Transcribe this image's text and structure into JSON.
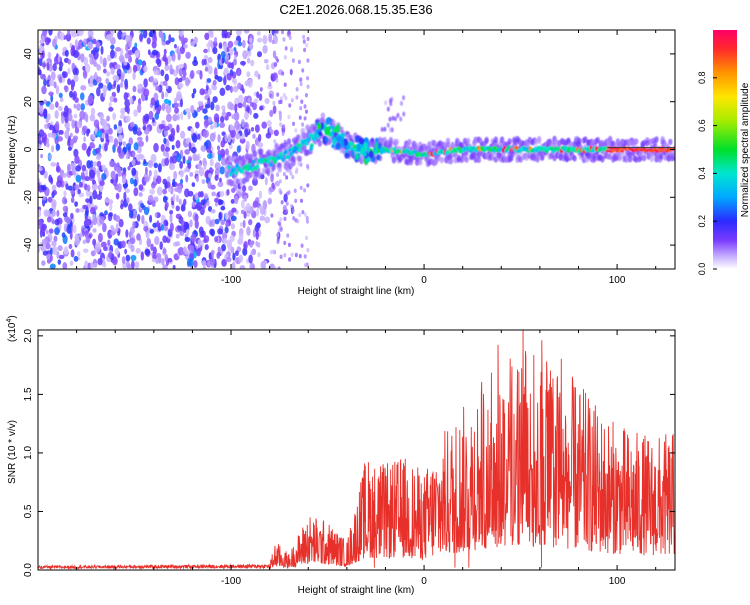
{
  "title": "C2E1.2026.068.15.35.E36",
  "chart_data": [
    {
      "type": "heatmap",
      "name": "spectrogram",
      "xlabel": "Height of straight line (km)",
      "ylabel": "Frequency (Hz)",
      "xlim": [
        -200,
        130
      ],
      "ylim": [
        -50,
        50
      ],
      "xticks": [
        -100,
        0,
        100
      ],
      "xtick_labels": [
        "-100",
        "0",
        "100"
      ],
      "yticks": [
        -40,
        -20,
        0,
        20,
        40
      ],
      "ytick_labels": [
        "-40",
        "-20",
        "0",
        "20",
        "40"
      ],
      "colorbar": {
        "label": "Normalized spectral amplitude",
        "range": [
          0,
          1
        ],
        "ticks": [
          0.0,
          0.2,
          0.4,
          0.6,
          0.8
        ],
        "tick_labels": [
          "0.0",
          "0.2",
          "0.4",
          "0.6",
          "0.8"
        ]
      },
      "noise_region_x": [
        -200,
        -75
      ],
      "signal_center_hz": [
        [
          -100,
          -9
        ],
        [
          -90,
          -7
        ],
        [
          -80,
          -5
        ],
        [
          -70,
          -2
        ],
        [
          -60,
          4
        ],
        [
          -52,
          9
        ],
        [
          -45,
          5
        ],
        [
          -40,
          2
        ],
        [
          -30,
          -1
        ],
        [
          -20,
          0
        ],
        [
          0,
          -2
        ],
        [
          20,
          0
        ],
        [
          50,
          0
        ],
        [
          100,
          0
        ],
        [
          130,
          0
        ]
      ]
    },
    {
      "type": "line",
      "name": "snr",
      "xlabel": "Height of straight line (km)",
      "ylabel": "SNR (10 * v/v)",
      "multiplier_label": "(x10",
      "multiplier_exp": "4",
      "xlim": [
        -200,
        130
      ],
      "ylim": [
        0,
        2.05
      ],
      "xticks": [
        -100,
        0,
        100
      ],
      "xtick_labels": [
        "-100",
        "0",
        "100"
      ],
      "yticks": [
        0.0,
        0.5,
        1.0,
        1.5,
        2.0
      ],
      "ytick_labels": [
        "0.0",
        "0.5",
        "1.0",
        "1.5",
        "2.0"
      ],
      "series": [
        {
          "name": "SNR",
          "color": "#e8302a",
          "envelope": [
            [
              -200,
              0.03
            ],
            [
              -80,
              0.04
            ],
            [
              -77,
              0.18
            ],
            [
              -70,
              0.1
            ],
            [
              -60,
              0.35
            ],
            [
              -50,
              0.3
            ],
            [
              -40,
              0.18
            ],
            [
              -30,
              0.7
            ],
            [
              -20,
              0.65
            ],
            [
              -10,
              0.7
            ],
            [
              0,
              0.6
            ],
            [
              10,
              0.85
            ],
            [
              20,
              1.0
            ],
            [
              30,
              1.2
            ],
            [
              40,
              1.3
            ],
            [
              50,
              1.4
            ],
            [
              60,
              1.3
            ],
            [
              70,
              1.25
            ],
            [
              80,
              1.15
            ],
            [
              90,
              1.0
            ],
            [
              100,
              0.9
            ],
            [
              110,
              0.85
            ],
            [
              120,
              0.82
            ],
            [
              130,
              0.85
            ]
          ]
        }
      ]
    }
  ]
}
